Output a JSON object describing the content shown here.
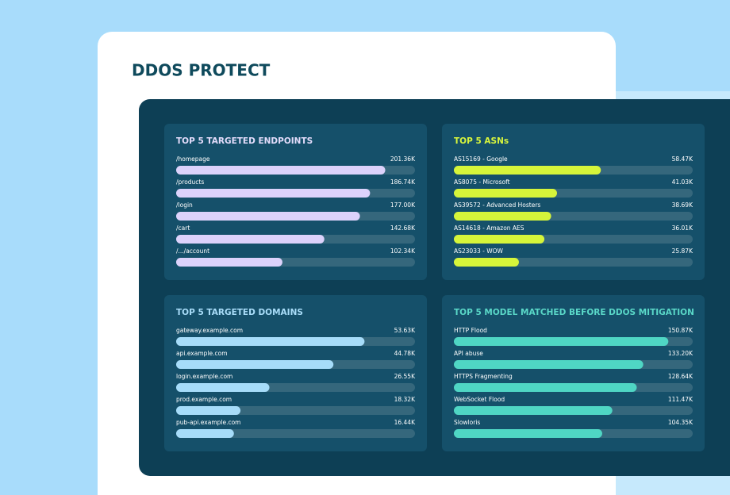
{
  "title": "DDOS PROTECT",
  "chart_data": [
    {
      "type": "bar",
      "title": "TOP 5 TARGETED ENDPOINTS",
      "title_color": "#e3dcfb",
      "color": "#dcd2fb",
      "categories": [
        "/homepage",
        "/products",
        "/login",
        "/cart",
        "/.../account"
      ],
      "values": [
        201.36,
        186.74,
        177.0,
        142.68,
        102.34
      ],
      "value_labels": [
        "201.36K",
        "186.74K",
        "177.00K",
        "142.68K",
        "102.34K"
      ],
      "xlim": [
        0,
        230
      ]
    },
    {
      "type": "bar",
      "title": "TOP 5 ASNs",
      "title_color": "#d8f53c",
      "color": "#d6f53a",
      "categories": [
        "AS15169 - Google",
        "AS8075 - Microsoft",
        "AS39572 - Advanced Hosters",
        "AS14618 - Amazon AES",
        "AS23033 - WOW"
      ],
      "values": [
        58.47,
        41.03,
        38.69,
        36.01,
        25.87
      ],
      "value_labels": [
        "58.47K",
        "41.03K",
        "38.69K",
        "36.01K",
        "25.87K"
      ],
      "xlim": [
        0,
        95
      ]
    },
    {
      "type": "bar",
      "title": "TOP 5 TARGETED DOMAINS",
      "title_color": "#a9ddf9",
      "color": "#a6dcf9",
      "categories": [
        "gateway.example.com",
        "api.example.com",
        "login.example.com",
        "prod.example.com",
        "pub-api.example.com"
      ],
      "values": [
        53.63,
        44.78,
        26.55,
        18.32,
        16.44
      ],
      "value_labels": [
        "53.63K",
        "44.78K",
        "26.55K",
        "18.32K",
        "16.44K"
      ],
      "xlim": [
        0,
        68
      ]
    },
    {
      "type": "bar",
      "title": "TOP 5 MODEL MATCHED BEFORE DDOS MITIGATION",
      "title_color": "#5ad8c8",
      "color": "#4fd6c4",
      "categories": [
        "HTTP Flood",
        "API abuse",
        "HTTPS Fragmenting",
        "WebSocket Flood",
        "Slowloris"
      ],
      "values": [
        150.87,
        133.2,
        128.64,
        111.47,
        104.35
      ],
      "value_labels": [
        "150.87K",
        "133.20K",
        "128.64K",
        "111.47K",
        "104.35K"
      ],
      "xlim": [
        0,
        168
      ]
    }
  ]
}
